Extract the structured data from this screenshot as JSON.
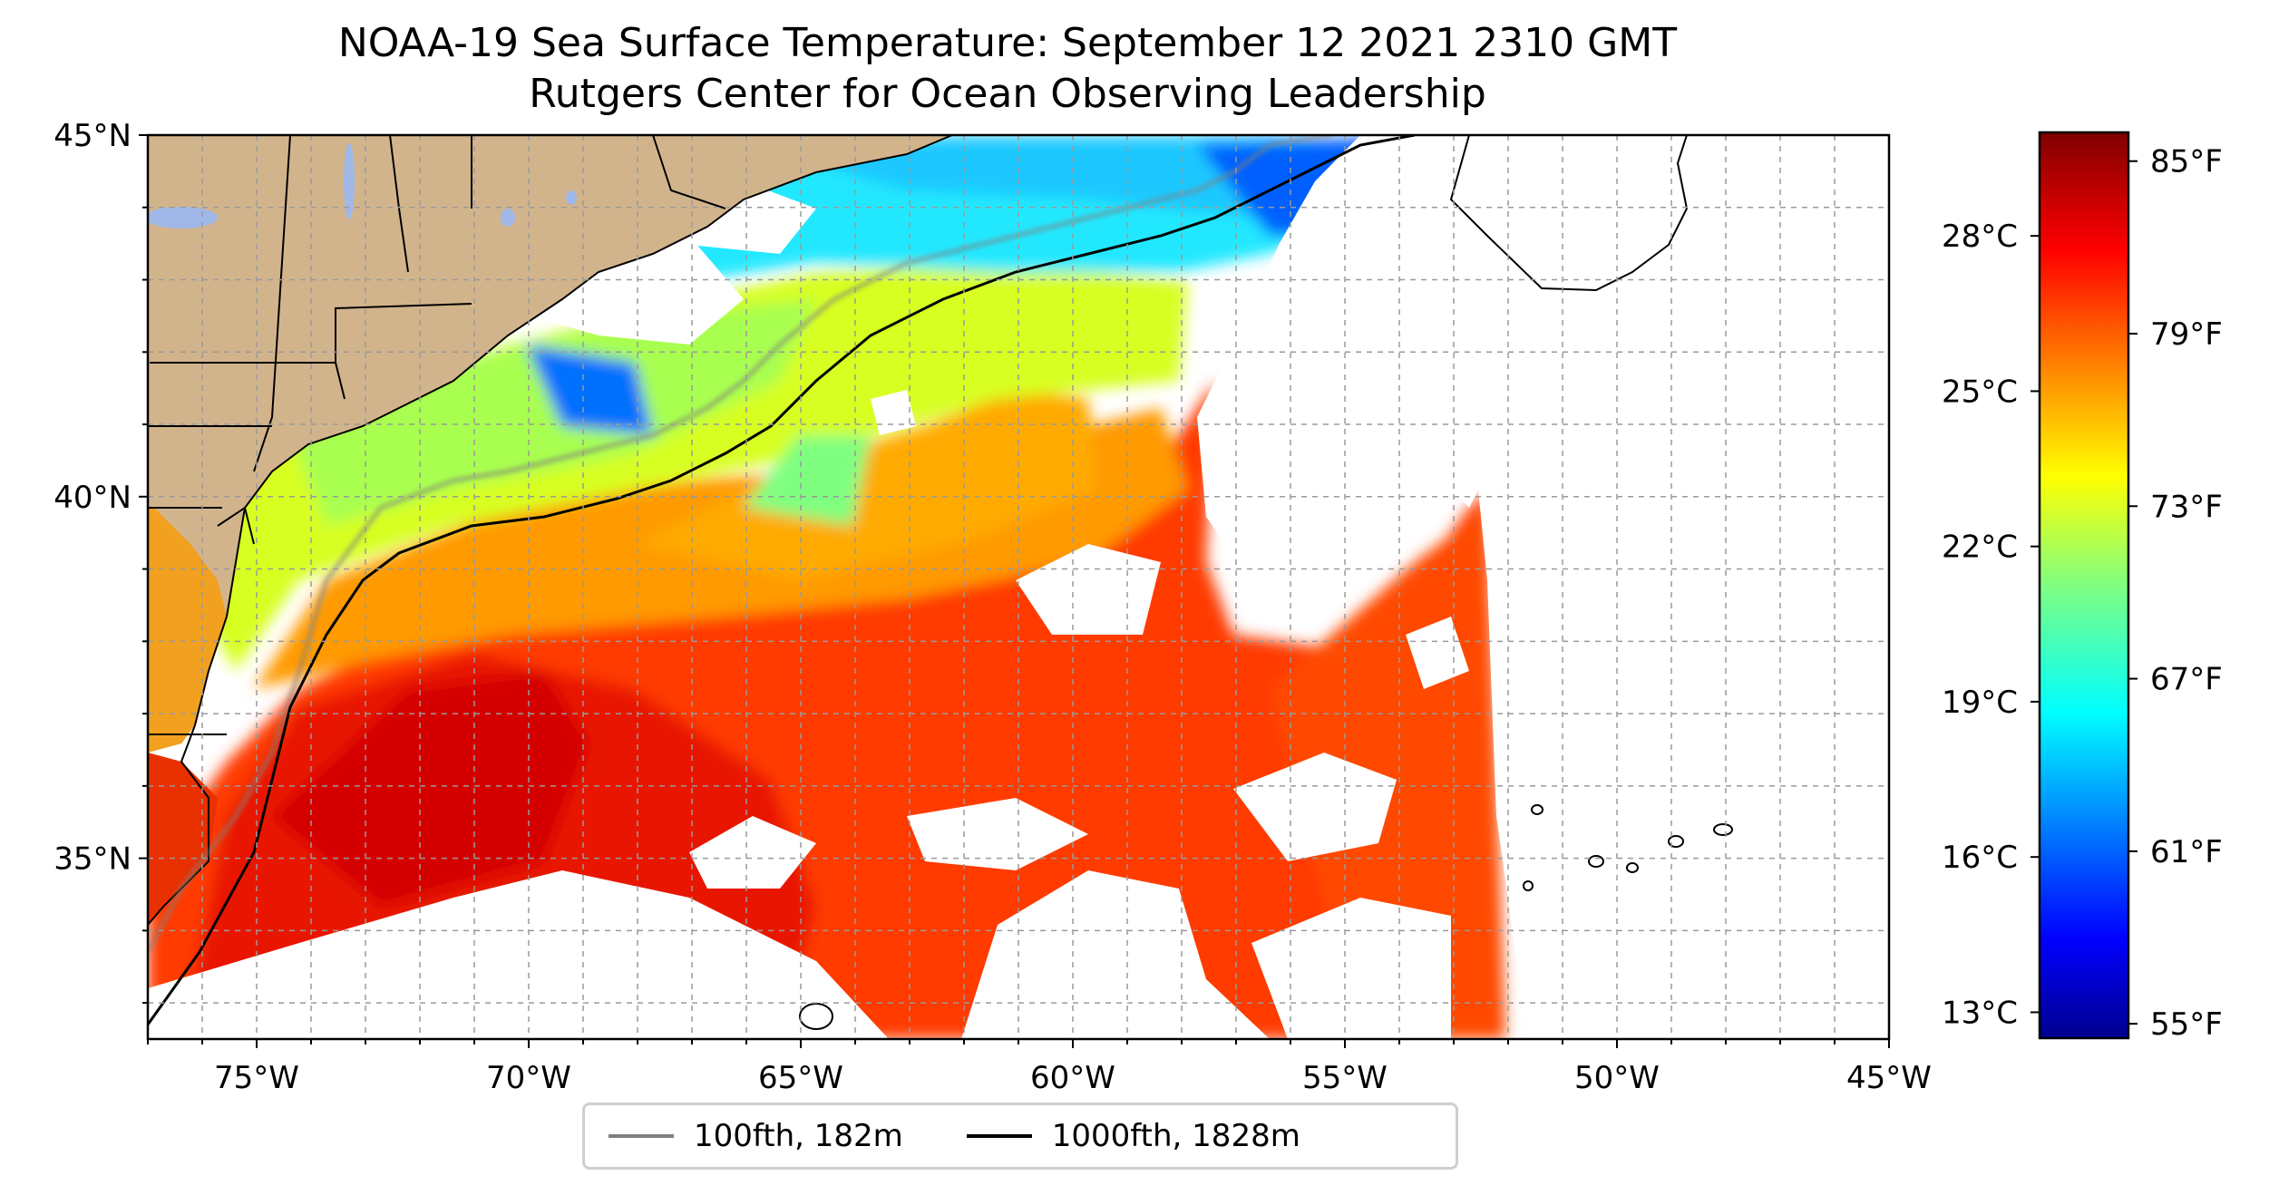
{
  "title": "NOAA-19 Sea Surface Temperature: September 12 2021 2310 GMT",
  "subtitle": "Rutgers Center for Ocean Observing Leadership",
  "map": {
    "lon_range": [
      -77,
      -45
    ],
    "lat_range": [
      32.5,
      45
    ],
    "projection": "plate carree",
    "grid": true,
    "land_color": "#d2b48c",
    "cloud_mask_color": "#ffffff",
    "x_ticks": [
      {
        "value": -75,
        "label": "75°W"
      },
      {
        "value": -70,
        "label": "70°W"
      },
      {
        "value": -65,
        "label": "65°W"
      },
      {
        "value": -60,
        "label": "60°W"
      },
      {
        "value": -55,
        "label": "55°W"
      },
      {
        "value": -50,
        "label": "50°W"
      },
      {
        "value": -45,
        "label": "45°W"
      }
    ],
    "y_ticks": [
      {
        "value": 45,
        "label": "45°N"
      },
      {
        "value": 40,
        "label": "40°N"
      },
      {
        "value": 35,
        "label": "35°N"
      }
    ]
  },
  "legend": {
    "placement": "bottom-center, below map",
    "items": [
      {
        "label": "100fth, 182m",
        "color": "#808080"
      },
      {
        "label": "1000fth, 1828m",
        "color": "#000000"
      }
    ]
  },
  "colorbar": {
    "colormap": "jet",
    "range_f": [
      54.5,
      86
    ],
    "fahrenheit_ticks": [
      {
        "value": 55,
        "label": "55°F"
      },
      {
        "value": 61,
        "label": "61°F"
      },
      {
        "value": 67,
        "label": "67°F"
      },
      {
        "value": 73,
        "label": "73°F"
      },
      {
        "value": 79,
        "label": "79°F"
      },
      {
        "value": 85,
        "label": "85°F"
      }
    ],
    "celsius_ticks": [
      {
        "value": 13,
        "label": "13°C"
      },
      {
        "value": 16,
        "label": "16°C"
      },
      {
        "value": 19,
        "label": "19°C"
      },
      {
        "value": 22,
        "label": "22°C"
      },
      {
        "value": 25,
        "label": "25°C"
      },
      {
        "value": 28,
        "label": "28°C"
      }
    ]
  }
}
